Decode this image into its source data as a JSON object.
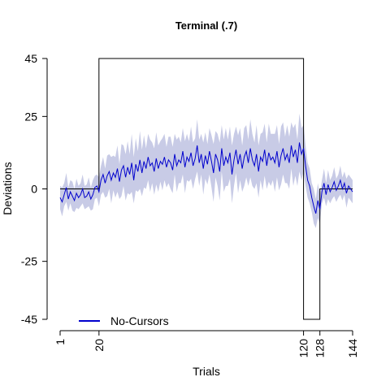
{
  "chart_data": {
    "type": "line",
    "title": "Terminal (.7)",
    "xlabel": "Trials",
    "ylabel": "Deviations",
    "xlim": [
      1,
      144
    ],
    "ylim": [
      -45,
      45
    ],
    "x_ticks": [
      1,
      20,
      120,
      128,
      144
    ],
    "y_ticks": [
      -45,
      -25,
      0,
      25,
      45
    ],
    "x_tick_labels": [
      "1",
      "20",
      "120",
      "128",
      "144"
    ],
    "y_tick_labels": [
      "-45",
      "-25",
      "0",
      "25",
      "45"
    ],
    "grid": false,
    "legend": {
      "position": "bottom-left",
      "entries": [
        {
          "label": "No-Cursors",
          "color": "#0000cd"
        }
      ]
    },
    "perturbation": {
      "color": "#000000",
      "segments": [
        {
          "x_start": 1,
          "x_end": 20,
          "value": 0
        },
        {
          "x_start": 20,
          "x_end": 120,
          "value": 45
        },
        {
          "x_start": 120,
          "x_end": 128,
          "value": -45
        },
        {
          "x_start": 128,
          "x_end": 144,
          "value": 0
        }
      ]
    },
    "series": [
      {
        "name": "No-Cursors",
        "color": "#0000cd",
        "band_color": "#c8cbe6",
        "x_start": 1,
        "mean": [
          -3.0,
          -4.5,
          -2.0,
          0.5,
          -3.5,
          -1.0,
          -2.5,
          -4.0,
          -1.5,
          -3.0,
          -2.0,
          0.0,
          -3.0,
          -2.5,
          -1.0,
          -3.5,
          -2.0,
          0.5,
          1.0,
          -1.0,
          3.0,
          5.0,
          2.0,
          4.5,
          6.0,
          3.0,
          5.5,
          4.0,
          7.0,
          2.5,
          6.5,
          8.0,
          4.0,
          7.5,
          5.0,
          9.0,
          3.0,
          8.5,
          6.0,
          10.0,
          5.5,
          9.5,
          7.0,
          11.0,
          8.0,
          9.0,
          6.0,
          10.5,
          7.0,
          9.5,
          8.5,
          11.0,
          7.5,
          10.0,
          9.0,
          6.5,
          12.0,
          8.0,
          10.0,
          9.0,
          13.0,
          7.5,
          11.0,
          9.5,
          12.5,
          8.0,
          10.5,
          15.0,
          9.0,
          12.0,
          7.0,
          11.5,
          8.5,
          13.0,
          9.5,
          5.5,
          12.0,
          10.0,
          6.0,
          14.0,
          8.0,
          11.0,
          9.0,
          12.5,
          5.0,
          10.0,
          13.5,
          8.5,
          12.0,
          7.0,
          11.0,
          13.0,
          9.0,
          14.0,
          10.0,
          8.0,
          12.0,
          6.0,
          11.0,
          9.5,
          13.5,
          8.0,
          12.5,
          10.0,
          11.0,
          9.0,
          13.0,
          7.5,
          11.5,
          14.0,
          10.0,
          12.0,
          9.0,
          15.0,
          11.0,
          13.5,
          9.0,
          16.0,
          12.0,
          14.0,
          8.0,
          3.0,
          1.0,
          -3.0,
          -6.0,
          -8.5,
          -4.0,
          -7.0,
          -1.0,
          2.0,
          -2.0,
          1.5,
          -1.0,
          0.5,
          2.5,
          -0.5,
          1.0,
          3.0,
          0.0,
          2.0,
          -1.5,
          1.0,
          0.0,
          -1.0
        ],
        "band_half_width": [
          4,
          5,
          4,
          5,
          4,
          4,
          5,
          4,
          5,
          4,
          4,
          5,
          4,
          4,
          5,
          4,
          5,
          4,
          4,
          5,
          5,
          6,
          5,
          7,
          6,
          8,
          6,
          7,
          8,
          6,
          9,
          7,
          8,
          9,
          7,
          10,
          8,
          9,
          7,
          10,
          8,
          9,
          7,
          8,
          9,
          7,
          8,
          9,
          8,
          7,
          9,
          8,
          7,
          8,
          9,
          8,
          7,
          9,
          8,
          7,
          8,
          9,
          8,
          7,
          9,
          8,
          7,
          9,
          8,
          7,
          9,
          8,
          7,
          8,
          9,
          10,
          8,
          9,
          10,
          8,
          9,
          10,
          8,
          9,
          10,
          9,
          8,
          10,
          9,
          8,
          10,
          9,
          8,
          10,
          9,
          8,
          10,
          9,
          8,
          10,
          9,
          8,
          10,
          9,
          8,
          10,
          9,
          8,
          10,
          9,
          8,
          10,
          9,
          8,
          10,
          9,
          8,
          10,
          9,
          8,
          7,
          6,
          6,
          5,
          6,
          5,
          6,
          5,
          4,
          5,
          4,
          5,
          4,
          4,
          5,
          4,
          4,
          5,
          4,
          4,
          5,
          4,
          4,
          4
        ]
      }
    ]
  }
}
